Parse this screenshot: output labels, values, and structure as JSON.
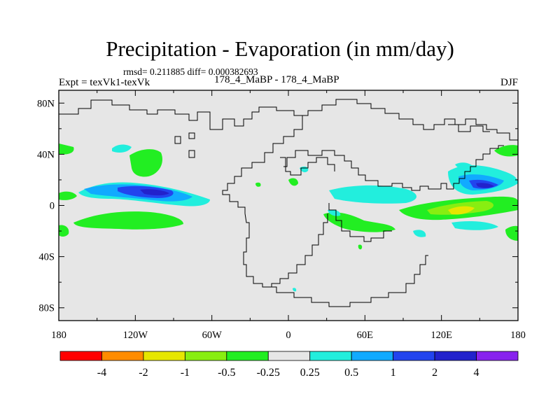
{
  "title": "Precipitation - Evaporation (in mm/day)",
  "stats": "rmsd= 0.211885  diff= 0.000382693",
  "expt_label": "Expt = texVk1-texVk",
  "subtitle": "178_4_MaBP - 178_4_MaBP",
  "season": "DJF",
  "lat_ticks": [
    "80N",
    "40N",
    "0",
    "40S",
    "80S"
  ],
  "lon_ticks": [
    "180",
    "120W",
    "60W",
    "0",
    "60E",
    "120E",
    "180"
  ],
  "colorbar": {
    "labels": [
      "-4",
      "-2",
      "-1",
      "-0.5",
      "-0.25",
      "0.25",
      "0.5",
      "1",
      "2",
      "4"
    ],
    "colors": [
      "#ff0000",
      "#ff8c00",
      "#e6e600",
      "#88ee11",
      "#22ee22",
      "#e6e6e6",
      "#22eedd",
      "#11aaff",
      "#2244ee",
      "#2222cc",
      "#8822ee"
    ]
  },
  "chart_data": {
    "type": "filled-contour map",
    "title": "Precipitation - Evaporation (in mm/day)",
    "variable": "P-E difference",
    "units": "mm/day",
    "lat_range": [
      -90,
      90
    ],
    "lon_range": [
      -180,
      180
    ],
    "levels": [
      -4,
      -2,
      -1,
      -0.5,
      -0.25,
      0.25,
      0.5,
      1,
      2,
      4
    ],
    "notable_features": [
      {
        "region": "central Pacific north of equator",
        "lat": 8,
        "lon": -110,
        "value_range": "1 to 2",
        "sign": "positive"
      },
      {
        "region": "western Pacific near 15N",
        "lat": 15,
        "lon": 150,
        "value_range": "1 to 2",
        "sign": "positive"
      },
      {
        "region": "western Pacific south of equator",
        "lat": -5,
        "lon": 130,
        "value_range": "-1 to -0.5",
        "sign": "negative"
      },
      {
        "region": "eastern Pacific near 10S",
        "lat": -12,
        "lon": -120,
        "value_range": "-0.5 to -0.25",
        "sign": "negative"
      }
    ]
  }
}
